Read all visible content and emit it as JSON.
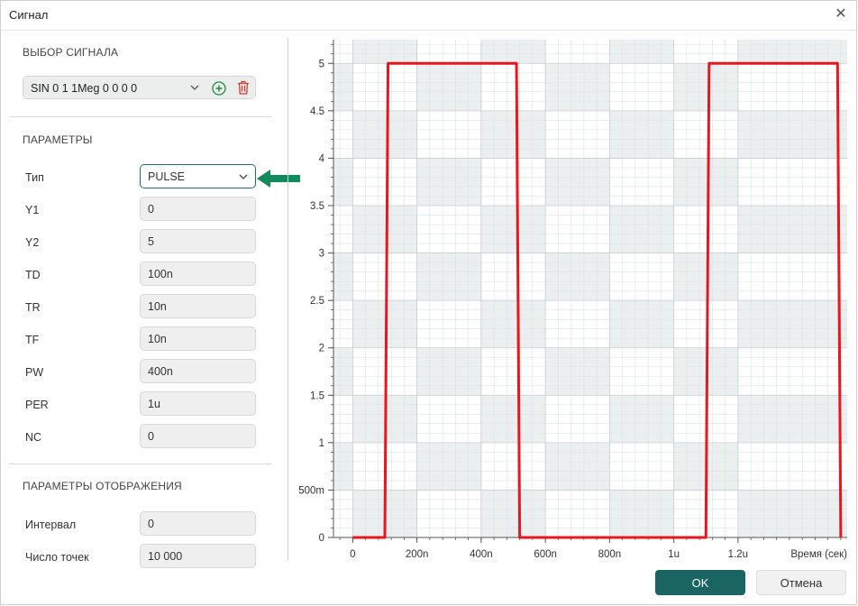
{
  "window": {
    "title": "Сигнал"
  },
  "signal_select": {
    "title": "ВЫБОР СИГНАЛА",
    "value": "SIN 0 1 1Meg 0 0 0 0"
  },
  "params": {
    "title": "ПАРАМЕТРЫ",
    "type_label": "Тип",
    "type_value": "PULSE",
    "rows": [
      {
        "label": "Y1",
        "value": "0"
      },
      {
        "label": "Y2",
        "value": "5"
      },
      {
        "label": "TD",
        "value": "100n"
      },
      {
        "label": "TR",
        "value": "10n"
      },
      {
        "label": "TF",
        "value": "10n"
      },
      {
        "label": "PW",
        "value": "400n"
      },
      {
        "label": "PER",
        "value": "1u"
      },
      {
        "label": "NC",
        "value": "0"
      }
    ]
  },
  "display": {
    "title": "ПАРАМЕТРЫ ОТОБРАЖЕНИЯ",
    "interval_label": "Интервал",
    "interval_value": "0",
    "points_label": "Число точек",
    "points_value": "10 000"
  },
  "buttons": {
    "ok": "OK",
    "cancel": "Отмена"
  },
  "colors": {
    "accent": "#1a6561",
    "signal": "#e8171f",
    "arrow": "#118a5c"
  },
  "chart_data": {
    "type": "line",
    "xlabel": "Время (сек)",
    "ylabel": "",
    "xlim": [
      -6e-08,
      1.54e-06
    ],
    "ylim": [
      0,
      5.25
    ],
    "x_ticks": [
      {
        "value": 0,
        "label": "0"
      },
      {
        "value": 2e-07,
        "label": "200n"
      },
      {
        "value": 4e-07,
        "label": "400n"
      },
      {
        "value": 6e-07,
        "label": "600n"
      },
      {
        "value": 8e-07,
        "label": "800n"
      },
      {
        "value": 1e-06,
        "label": "1u"
      },
      {
        "value": 1.2e-06,
        "label": "1.2u"
      }
    ],
    "y_ticks": [
      {
        "value": 0,
        "label": "0"
      },
      {
        "value": 0.5,
        "label": "500m"
      },
      {
        "value": 1,
        "label": "1"
      },
      {
        "value": 1.5,
        "label": "1.5"
      },
      {
        "value": 2,
        "label": "2"
      },
      {
        "value": 2.5,
        "label": "2.5"
      },
      {
        "value": 3,
        "label": "3"
      },
      {
        "value": 3.5,
        "label": "3.5"
      },
      {
        "value": 4,
        "label": "4"
      },
      {
        "value": 4.5,
        "label": "4.5"
      },
      {
        "value": 5,
        "label": "5"
      }
    ],
    "grid": true,
    "series": [
      {
        "x": [
          0,
          1e-07,
          1.1e-07,
          5.1e-07,
          5.2e-07,
          1.1e-06,
          1.11e-06,
          1.51e-06,
          1.52e-06
        ],
        "y": [
          0,
          0,
          5,
          5,
          0,
          0,
          5,
          5,
          0
        ]
      }
    ]
  }
}
